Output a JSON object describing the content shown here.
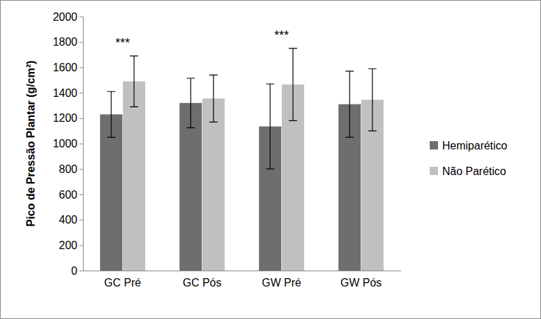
{
  "chart_data": {
    "type": "bar",
    "y_label": "Pico de Pressão Plantar (g/cm²)",
    "categories": [
      "GC Pré",
      "GC Pós",
      "GW Pré",
      "GW Pós"
    ],
    "series": [
      {
        "name": "Hemiparético",
        "color": "#6e6e6e",
        "values": [
          1230,
          1320,
          1135,
          1310
        ],
        "errors": [
          180,
          195,
          335,
          260
        ]
      },
      {
        "name": "Não Parético",
        "color": "#c0c0c0",
        "values": [
          1490,
          1355,
          1465,
          1345
        ],
        "errors": [
          200,
          185,
          285,
          245
        ]
      }
    ],
    "ylim": [
      0,
      2000
    ],
    "yticks": [
      0,
      200,
      400,
      600,
      800,
      1000,
      1200,
      1400,
      1600,
      1800,
      2000
    ],
    "grid": false,
    "legend": "right",
    "annotations": [
      {
        "text": "***",
        "x": "GC Pré",
        "y": 1760
      },
      {
        "text": "***",
        "x": "GW Pré",
        "y": 1820
      }
    ]
  }
}
